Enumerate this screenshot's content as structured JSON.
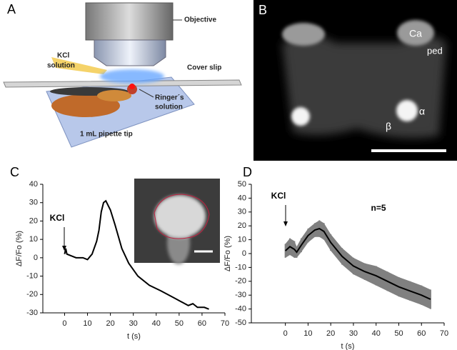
{
  "panel_a": {
    "label": "A",
    "objective": "Objective",
    "kcl": "KCl",
    "kcl_solution": "solution",
    "cover_slip": "Cover slip",
    "ringers": "Ringer´s",
    "ringers_solution": "solution",
    "pipette_tip": "1 mL pipette tip"
  },
  "panel_b": {
    "label": "B",
    "ca": "Ca",
    "ped": "ped",
    "alpha": "α",
    "beta": "β"
  },
  "chart_data": [
    {
      "type": "line",
      "panel": "C",
      "x_label": "t (s)",
      "y_label": "ΔF/Fo (%)",
      "annotations": [
        "KCl"
      ],
      "xlim": [
        -9.5,
        70
      ],
      "ylim": [
        -30,
        40
      ],
      "xticks": [
        0,
        10,
        20,
        30,
        40,
        50,
        60,
        70
      ],
      "yticks": [
        40,
        30,
        20,
        10,
        0,
        -10,
        -20,
        -30
      ],
      "x": [
        0,
        0.5,
        1,
        3,
        5,
        8,
        10,
        12,
        14,
        15,
        16,
        17,
        18,
        20,
        22,
        25,
        28,
        32,
        37,
        42,
        48,
        54,
        56,
        58,
        61,
        63
      ],
      "series": [
        {
          "color": "#000000",
          "values": [
            2,
            5,
            2,
            1,
            0,
            0,
            -1,
            2,
            9,
            15,
            25,
            30,
            31,
            26,
            18,
            5,
            -3,
            -10,
            -15,
            -18,
            -22,
            -26,
            -25,
            -27,
            -27,
            -28
          ]
        }
      ]
    },
    {
      "type": "line",
      "panel": "D",
      "x_label": "t (s)",
      "y_label": "ΔF/Fo (%)",
      "annotations": [
        "KCl",
        "n=5"
      ],
      "xlim": [
        -15,
        70
      ],
      "ylim": [
        -50,
        50
      ],
      "xticks": [
        0,
        10,
        20,
        30,
        40,
        50,
        60,
        70
      ],
      "yticks": [
        50,
        40,
        30,
        20,
        10,
        0,
        -10,
        -20,
        -30,
        -40,
        -50
      ],
      "x": [
        0,
        2,
        4,
        5,
        7,
        10,
        13,
        15,
        17,
        20,
        25,
        30,
        35,
        40,
        45,
        50,
        55,
        60,
        64
      ],
      "series": [
        {
          "color": "#000000",
          "error_color": "#808080",
          "values": [
            2,
            5,
            3,
            1,
            6,
            13,
            17,
            18,
            16,
            8,
            -2,
            -9,
            -13,
            -16,
            -20,
            -24,
            -27,
            -30,
            -33
          ],
          "errors": [
            5,
            6,
            6,
            4,
            5,
            5,
            5,
            6,
            6,
            6,
            6,
            6,
            6,
            7,
            7,
            7,
            7,
            7,
            7
          ]
        }
      ]
    }
  ]
}
